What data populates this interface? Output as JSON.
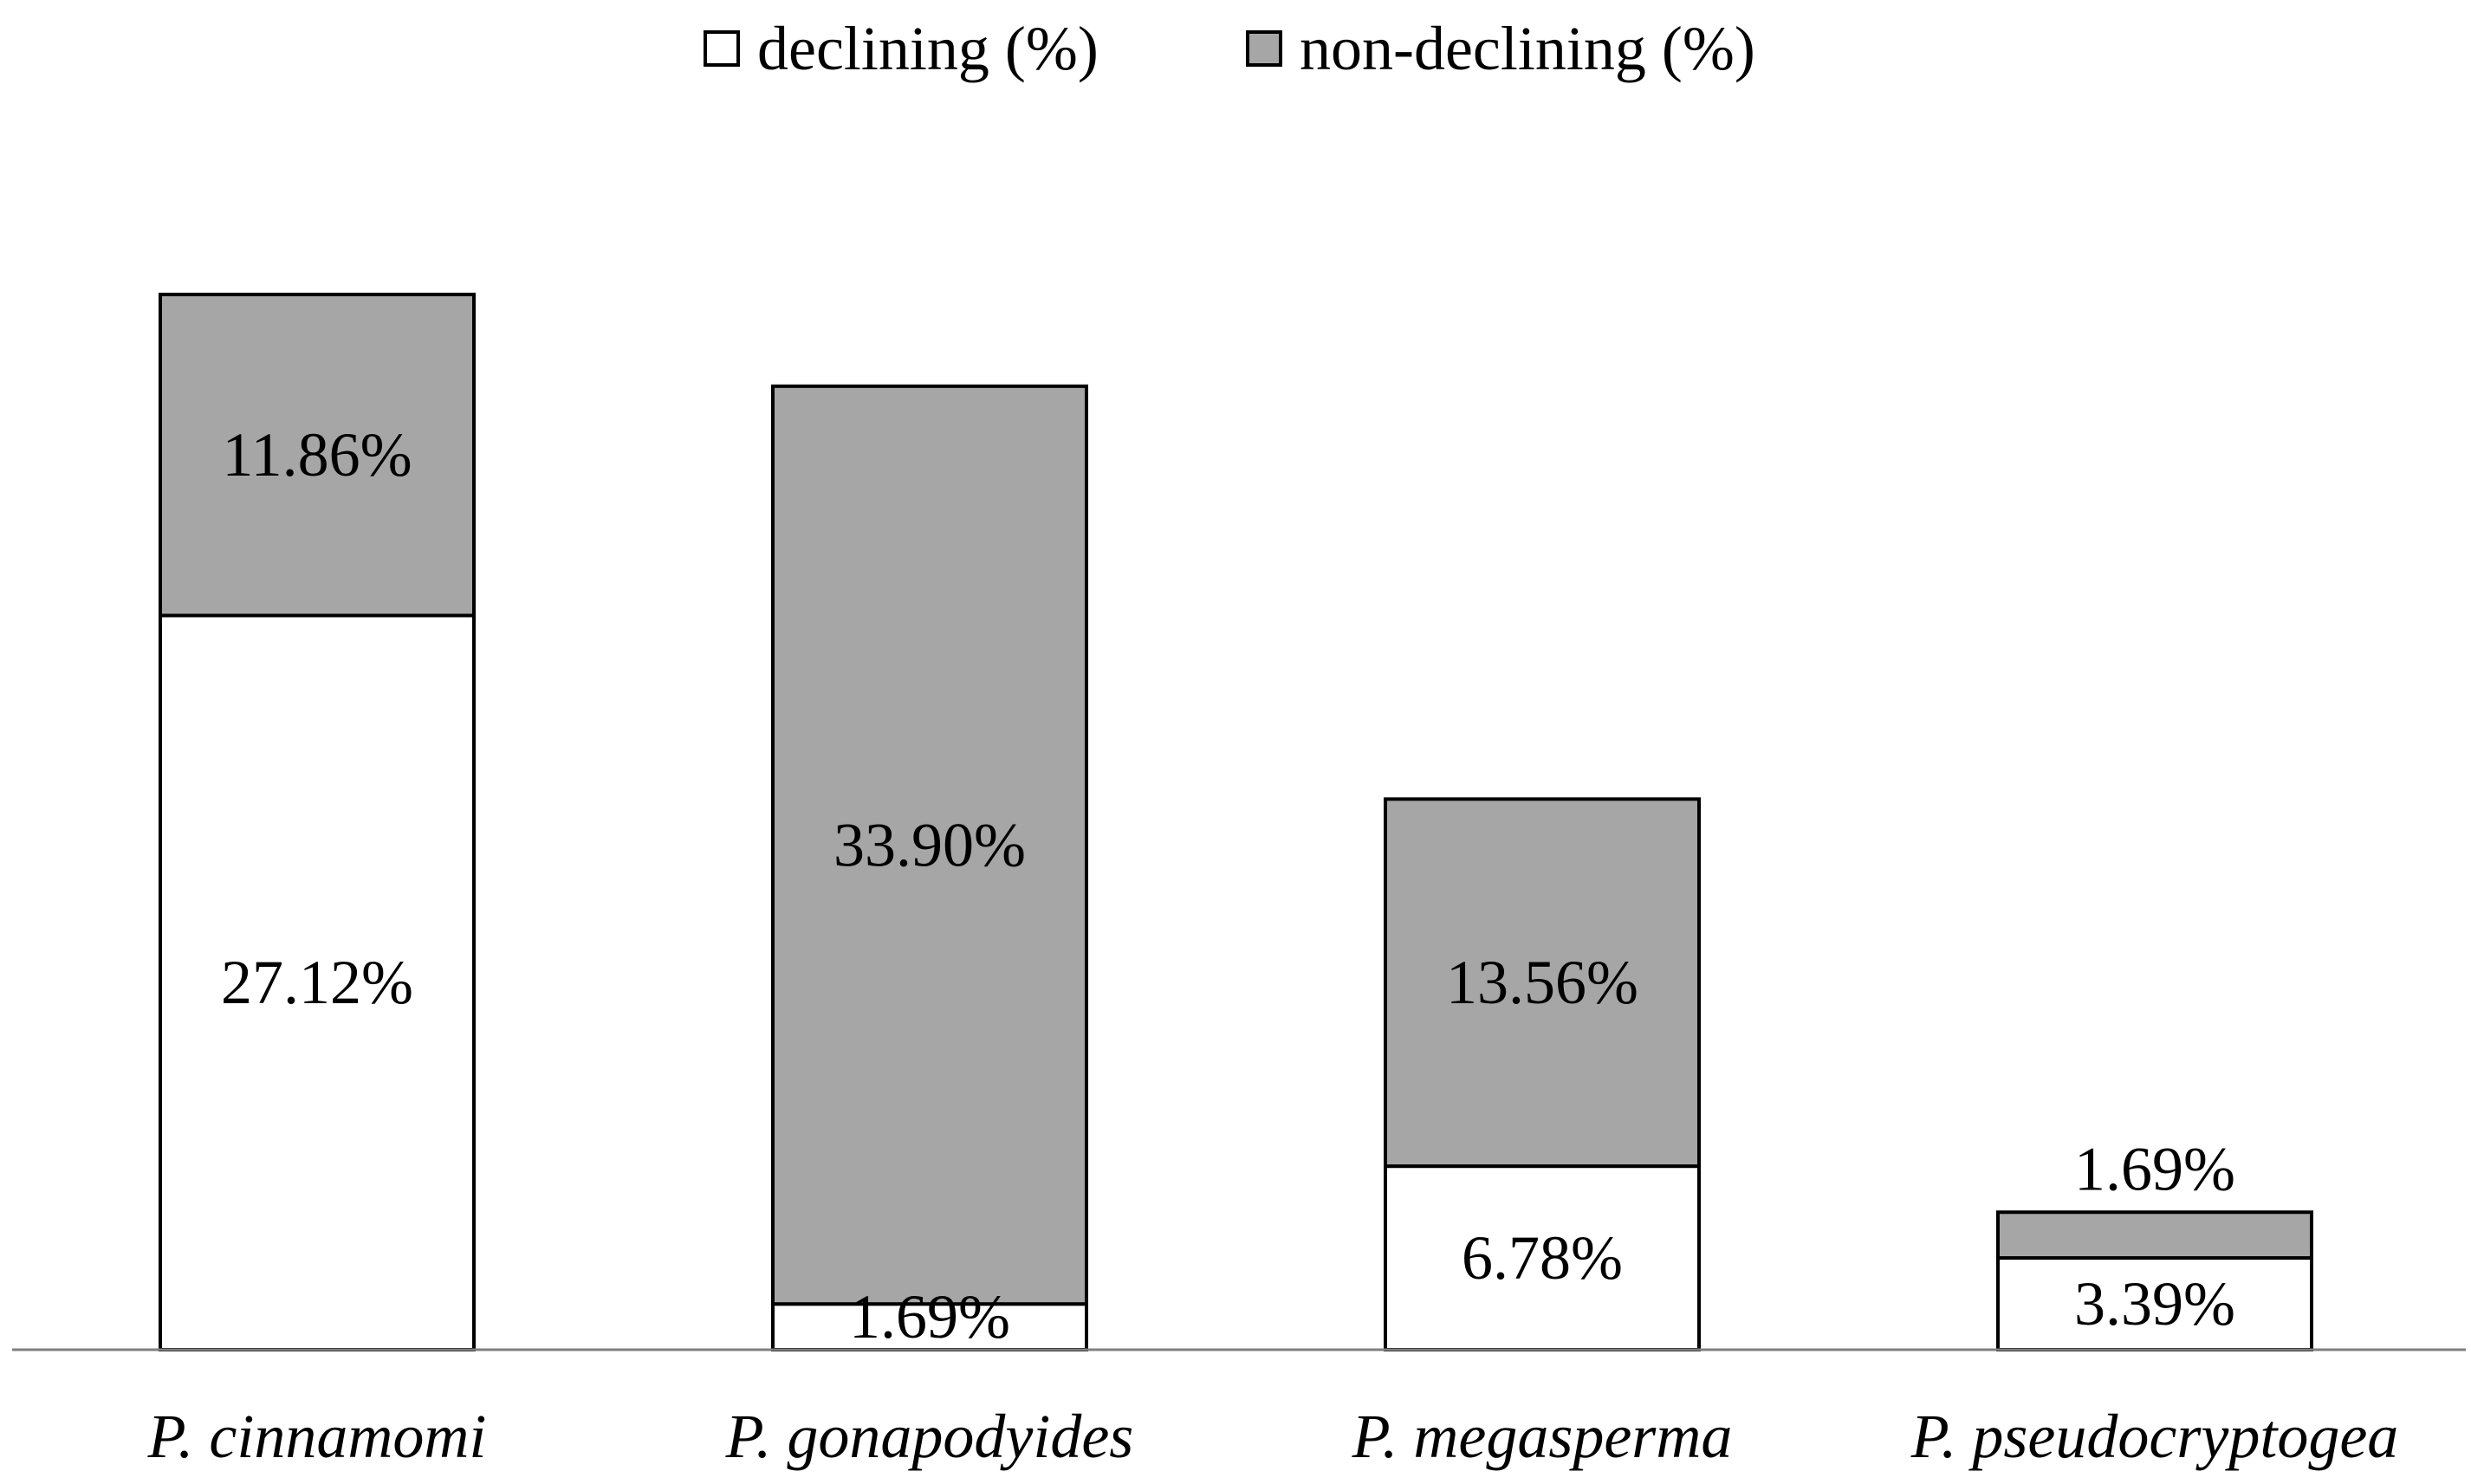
{
  "chart_data": {
    "type": "bar",
    "stacked": true,
    "title": "",
    "xlabel": "",
    "ylabel": "",
    "ylim": [
      0,
      40
    ],
    "grid": false,
    "legend_position": "top-center",
    "categories": [
      "P. cinnamomi",
      "P. gonapodyides",
      "P. megasperma",
      "P. pseudocryptogea"
    ],
    "series": [
      {
        "name": "declining (%)",
        "color": "#ffffff",
        "values": [
          27.12,
          1.69,
          6.78,
          3.39
        ],
        "labels": [
          "27.12%",
          "1.69%",
          "6.78%",
          "3.39%"
        ]
      },
      {
        "name": "non-declining (%)",
        "color": "#a6a6a6",
        "values": [
          11.86,
          33.9,
          13.56,
          1.69
        ],
        "labels": [
          "11.86%",
          "33.90%",
          "13.56%",
          "1.69%"
        ]
      }
    ],
    "axis_color": "#7f7f7f",
    "outline_color": "#000000"
  }
}
